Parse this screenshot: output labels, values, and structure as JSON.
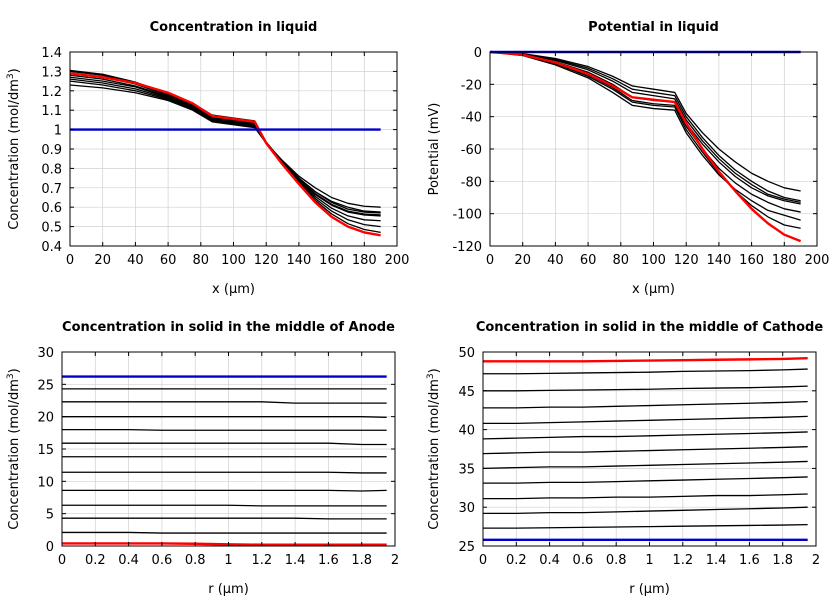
{
  "chart_data": [
    {
      "type": "line",
      "title": "Concentration in liquid",
      "xlabel": "x (µm)",
      "ylabel_base": "Concentration (mol/dm",
      "ylabel_sup": "3",
      "ylabel_close": ")",
      "xlim": [
        0,
        200
      ],
      "ylim": [
        0.4,
        1.4
      ],
      "xticks": [
        0,
        20,
        40,
        60,
        80,
        100,
        120,
        140,
        160,
        180,
        200
      ],
      "yticks": [
        0.4,
        0.5,
        0.6,
        0.7,
        0.8,
        0.9,
        1,
        1.1,
        1.2,
        1.3,
        1.4
      ],
      "x": [
        0,
        20,
        40,
        60,
        75,
        87,
        100,
        113,
        120,
        130,
        140,
        150,
        160,
        170,
        180,
        190
      ],
      "series": [
        {
          "color": "#000000",
          "values": [
            1.23,
            1.215,
            1.19,
            1.15,
            1.1,
            1.04,
            1.025,
            1.01,
            0.93,
            0.84,
            0.76,
            0.7,
            0.65,
            0.62,
            0.605,
            0.6
          ]
        },
        {
          "color": "#000000",
          "values": [
            1.25,
            1.23,
            1.2,
            1.155,
            1.105,
            1.045,
            1.03,
            1.015,
            0.93,
            0.835,
            0.75,
            0.68,
            0.63,
            0.6,
            0.58,
            0.575
          ]
        },
        {
          "color": "#000000",
          "values": [
            1.26,
            1.24,
            1.21,
            1.16,
            1.11,
            1.05,
            1.035,
            1.02,
            0.93,
            0.835,
            0.75,
            0.68,
            0.625,
            0.59,
            0.575,
            0.57
          ]
        },
        {
          "color": "#000000",
          "values": [
            1.27,
            1.25,
            1.22,
            1.165,
            1.115,
            1.055,
            1.04,
            1.025,
            0.935,
            0.835,
            0.745,
            0.67,
            0.615,
            0.58,
            0.565,
            0.56
          ]
        },
        {
          "color": "#000000",
          "values": [
            1.28,
            1.26,
            1.225,
            1.17,
            1.12,
            1.06,
            1.045,
            1.03,
            0.935,
            0.83,
            0.74,
            0.665,
            0.61,
            0.575,
            0.56,
            0.555
          ]
        },
        {
          "color": "#000000",
          "values": [
            1.29,
            1.27,
            1.235,
            1.175,
            1.125,
            1.065,
            1.05,
            1.035,
            0.935,
            0.83,
            0.735,
            0.655,
            0.595,
            0.555,
            0.535,
            0.53
          ]
        },
        {
          "color": "#000000",
          "values": [
            1.3,
            1.28,
            1.24,
            1.18,
            1.13,
            1.07,
            1.055,
            1.04,
            0.935,
            0.83,
            0.73,
            0.645,
            0.58,
            0.535,
            0.51,
            0.5
          ]
        },
        {
          "color": "#000000",
          "values": [
            1.305,
            1.285,
            1.245,
            1.185,
            1.135,
            1.075,
            1.06,
            1.045,
            0.935,
            0.825,
            0.725,
            0.635,
            0.565,
            0.515,
            0.485,
            0.47
          ]
        },
        {
          "color": "#ff0000",
          "width": 2.4,
          "values": [
            1.29,
            1.27,
            1.24,
            1.19,
            1.135,
            1.07,
            1.055,
            1.04,
            0.93,
            0.82,
            0.72,
            0.625,
            0.55,
            0.5,
            0.47,
            0.455
          ]
        },
        {
          "color": "#0000cc",
          "width": 2.4,
          "values": [
            1,
            1,
            1,
            1,
            1,
            1,
            1,
            1,
            1,
            1,
            1,
            1,
            1,
            1,
            1,
            1
          ]
        }
      ]
    },
    {
      "type": "line",
      "title": "Potential in liquid",
      "xlabel": "x (µm)",
      "ylabel_base": "Potential (mV)",
      "ylabel_sup": "",
      "ylabel_close": "",
      "xlim": [
        0,
        200
      ],
      "ylim": [
        -120,
        0
      ],
      "xticks": [
        0,
        20,
        40,
        60,
        80,
        100,
        120,
        140,
        160,
        180,
        200
      ],
      "yticks": [
        -120,
        -100,
        -80,
        -60,
        -40,
        -20,
        0
      ],
      "x": [
        0,
        20,
        40,
        60,
        75,
        87,
        100,
        113,
        120,
        130,
        140,
        150,
        160,
        170,
        180,
        190
      ],
      "series": [
        {
          "color": "#000000",
          "values": [
            0,
            -1,
            -4,
            -9,
            -15,
            -21,
            -23,
            -25,
            -38,
            -50,
            -60,
            -68,
            -75,
            -80,
            -84,
            -86
          ]
        },
        {
          "color": "#000000",
          "values": [
            0,
            -1.2,
            -4.6,
            -10,
            -16.5,
            -23,
            -25,
            -27,
            -40,
            -53,
            -64,
            -73,
            -80,
            -86,
            -90,
            -92
          ]
        },
        {
          "color": "#000000",
          "values": [
            0,
            -1.4,
            -5.2,
            -11,
            -18,
            -25,
            -27,
            -29,
            -42,
            -55,
            -66,
            -75,
            -82,
            -88,
            -91,
            -93
          ]
        },
        {
          "color": "#000000",
          "values": [
            0,
            -1.6,
            -6,
            -12.5,
            -20,
            -28,
            -30,
            -31,
            -44,
            -57,
            -68,
            -77,
            -84,
            -89,
            -92,
            -94
          ]
        },
        {
          "color": "#000000",
          "values": [
            0,
            -1.8,
            -6.8,
            -14,
            -22,
            -30,
            -32,
            -33,
            -46,
            -60,
            -72,
            -81,
            -88,
            -93,
            -97,
            -99
          ]
        },
        {
          "color": "#000000",
          "values": [
            0,
            -2.2,
            -8,
            -16,
            -25,
            -33,
            -35,
            -36,
            -50,
            -64,
            -76,
            -85,
            -92,
            -98,
            -101,
            -104
          ]
        },
        {
          "color": "#000000",
          "values": [
            0,
            -1.9,
            -7.2,
            -15,
            -23,
            -31,
            -33,
            -34,
            -48,
            -62,
            -75,
            -86,
            -95,
            -102,
            -107,
            -109
          ]
        },
        {
          "color": "#ff0000",
          "width": 2.4,
          "values": [
            0,
            -1.7,
            -6.5,
            -13.5,
            -21,
            -28,
            -29.5,
            -31,
            -44,
            -60,
            -74,
            -86,
            -97,
            -106,
            -113,
            -117
          ]
        },
        {
          "color": "#0000cc",
          "width": 2.4,
          "values": [
            0,
            0,
            0,
            0,
            0,
            0,
            0,
            0,
            0,
            0,
            0,
            0,
            0,
            0,
            0,
            0
          ]
        }
      ]
    },
    {
      "type": "line",
      "title": "Concentration in solid in the middle of Anode",
      "xlabel": "r (µm)",
      "ylabel_base": "Concentration (mol/dm",
      "ylabel_sup": "3",
      "ylabel_close": ")",
      "xlim": [
        0,
        2
      ],
      "ylim": [
        0,
        30
      ],
      "xticks": [
        0,
        0.2,
        0.4,
        0.6,
        0.8,
        1,
        1.2,
        1.4,
        1.6,
        1.8,
        2
      ],
      "yticks": [
        0,
        5,
        10,
        15,
        20,
        25,
        30
      ],
      "x": [
        0,
        0.2,
        0.4,
        0.6,
        0.8,
        1.0,
        1.2,
        1.4,
        1.6,
        1.8,
        1.95
      ],
      "series": [
        {
          "color": "#000000",
          "values": [
            2.1,
            2.1,
            2.1,
            2.0,
            2.0,
            2.0,
            2.0,
            2.0,
            2.0,
            2.0,
            2.0
          ]
        },
        {
          "color": "#000000",
          "values": [
            4.3,
            4.3,
            4.3,
            4.3,
            4.3,
            4.3,
            4.3,
            4.3,
            4.2,
            4.2,
            4.2
          ]
        },
        {
          "color": "#000000",
          "values": [
            6.3,
            6.3,
            6.3,
            6.3,
            6.3,
            6.3,
            6.2,
            6.2,
            6.2,
            6.2,
            6.2
          ]
        },
        {
          "color": "#000000",
          "values": [
            8.6,
            8.6,
            8.6,
            8.6,
            8.6,
            8.6,
            8.6,
            8.6,
            8.6,
            8.5,
            8.6
          ]
        },
        {
          "color": "#000000",
          "values": [
            11.4,
            11.4,
            11.4,
            11.4,
            11.4,
            11.4,
            11.4,
            11.4,
            11.4,
            11.3,
            11.3
          ]
        },
        {
          "color": "#000000",
          "values": [
            13.8,
            13.8,
            13.8,
            13.8,
            13.8,
            13.8,
            13.8,
            13.8,
            13.8,
            13.8,
            13.8
          ]
        },
        {
          "color": "#000000",
          "values": [
            15.9,
            15.9,
            15.9,
            15.9,
            15.9,
            15.9,
            15.9,
            15.9,
            15.9,
            15.7,
            15.7
          ]
        },
        {
          "color": "#000000",
          "values": [
            18.0,
            18.0,
            18.0,
            17.9,
            17.9,
            17.9,
            17.9,
            17.9,
            17.9,
            17.9,
            17.9
          ]
        },
        {
          "color": "#000000",
          "values": [
            20.0,
            20.0,
            20.0,
            20.0,
            20.0,
            20.0,
            20.0,
            20.0,
            20.0,
            20.0,
            19.9
          ]
        },
        {
          "color": "#000000",
          "values": [
            22.3,
            22.3,
            22.3,
            22.3,
            22.3,
            22.3,
            22.3,
            22.1,
            22.1,
            22.1,
            22.1
          ]
        },
        {
          "color": "#000000",
          "values": [
            24.3,
            24.3,
            24.3,
            24.3,
            24.3,
            24.3,
            24.3,
            24.3,
            24.3,
            24.3,
            24.3
          ]
        },
        {
          "color": "#ff0000",
          "width": 2.4,
          "values": [
            0.4,
            0.4,
            0.4,
            0.4,
            0.35,
            0.25,
            0.2,
            0.2,
            0.2,
            0.2,
            0.2
          ]
        },
        {
          "color": "#0000cc",
          "width": 2.4,
          "values": [
            26.2,
            26.2,
            26.2,
            26.2,
            26.2,
            26.2,
            26.2,
            26.2,
            26.2,
            26.2,
            26.2
          ]
        }
      ]
    },
    {
      "type": "line",
      "title": "Concentration in solid in the middle of Cathode",
      "xlabel": "r (µm)",
      "ylabel_base": "Concentration (mol/dm",
      "ylabel_sup": "3",
      "ylabel_close": ")",
      "xlim": [
        0,
        2
      ],
      "ylim": [
        25,
        50
      ],
      "xticks": [
        0,
        0.2,
        0.4,
        0.6,
        0.8,
        1,
        1.2,
        1.4,
        1.6,
        1.8,
        2
      ],
      "yticks": [
        25,
        30,
        35,
        40,
        45,
        50
      ],
      "x": [
        0,
        0.2,
        0.4,
        0.6,
        0.8,
        1.0,
        1.2,
        1.4,
        1.6,
        1.8,
        1.95
      ],
      "series": [
        {
          "color": "#000000",
          "values": [
            27.3,
            27.3,
            27.35,
            27.4,
            27.45,
            27.5,
            27.55,
            27.6,
            27.65,
            27.7,
            27.75
          ]
        },
        {
          "color": "#000000",
          "values": [
            29.2,
            29.2,
            29.3,
            29.3,
            29.4,
            29.5,
            29.6,
            29.7,
            29.8,
            29.9,
            30.0
          ]
        },
        {
          "color": "#000000",
          "values": [
            31.1,
            31.1,
            31.2,
            31.2,
            31.3,
            31.3,
            31.4,
            31.5,
            31.5,
            31.6,
            31.7
          ]
        },
        {
          "color": "#000000",
          "values": [
            33.1,
            33.1,
            33.2,
            33.2,
            33.3,
            33.4,
            33.5,
            33.6,
            33.7,
            33.8,
            33.9
          ]
        },
        {
          "color": "#000000",
          "values": [
            35.0,
            35.1,
            35.2,
            35.2,
            35.3,
            35.4,
            35.5,
            35.6,
            35.7,
            35.8,
            35.9
          ]
        },
        {
          "color": "#000000",
          "values": [
            36.9,
            37.0,
            37.1,
            37.1,
            37.2,
            37.3,
            37.4,
            37.5,
            37.6,
            37.7,
            37.8
          ]
        },
        {
          "color": "#000000",
          "values": [
            38.8,
            38.9,
            39.0,
            39.1,
            39.1,
            39.2,
            39.3,
            39.4,
            39.5,
            39.6,
            39.7
          ]
        },
        {
          "color": "#000000",
          "values": [
            40.8,
            40.8,
            40.9,
            41.0,
            41.1,
            41.2,
            41.3,
            41.4,
            41.5,
            41.6,
            41.7
          ]
        },
        {
          "color": "#000000",
          "values": [
            42.8,
            42.8,
            42.9,
            42.9,
            43.0,
            43.1,
            43.2,
            43.3,
            43.4,
            43.5,
            43.6
          ]
        },
        {
          "color": "#000000",
          "values": [
            45.0,
            45.0,
            45.05,
            45.1,
            45.15,
            45.2,
            45.3,
            45.35,
            45.4,
            45.5,
            45.6
          ]
        },
        {
          "color": "#000000",
          "values": [
            47.2,
            47.2,
            47.25,
            47.3,
            47.35,
            47.4,
            47.5,
            47.55,
            47.6,
            47.7,
            47.8
          ]
        },
        {
          "color": "#ff0000",
          "width": 2.4,
          "values": [
            48.8,
            48.8,
            48.8,
            48.8,
            48.85,
            48.9,
            48.95,
            49.0,
            49.05,
            49.1,
            49.2
          ]
        },
        {
          "color": "#0000cc",
          "width": 2.4,
          "values": [
            25.8,
            25.8,
            25.8,
            25.8,
            25.8,
            25.8,
            25.8,
            25.8,
            25.8,
            25.8,
            25.8
          ]
        }
      ]
    }
  ]
}
